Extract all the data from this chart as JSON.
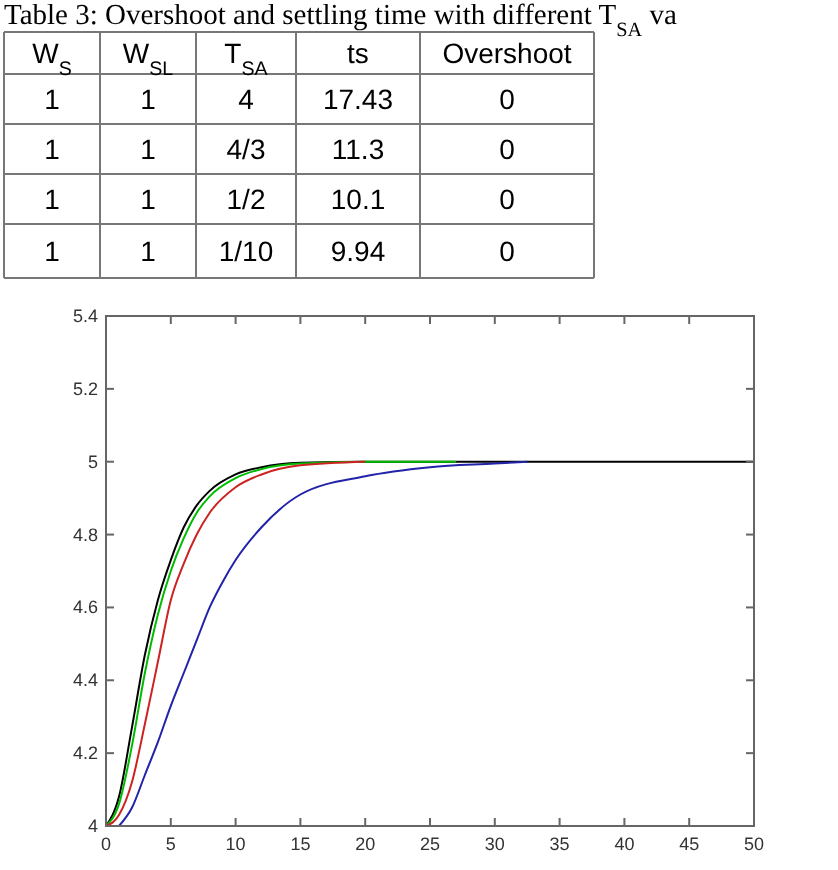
{
  "chart_data": [
    {
      "type": "other",
      "title": "Table 3: Overshoot and settling time with different T$_{SA}$ va",
      "categories": [
        "W$_{S}$",
        "W$_{SL}$",
        "T$_{SA}$",
        "ts",
        "Overshoot"
      ],
      "annotations": [
        "1",
        "1",
        "4",
        "17.43",
        "0",
        "1",
        "1",
        "4/3",
        "11.3",
        "0",
        "1",
        "1",
        "1/2",
        "10.1",
        "0",
        "1",
        "1",
        "1/10",
        "9.94",
        "0"
      ]
    },
    {
      "type": "line",
      "xlim": [
        0,
        50
      ],
      "ylim": [
        4,
        5.4
      ],
      "xticks": [
        0,
        5,
        10,
        15,
        20,
        25,
        30,
        35,
        40,
        45,
        50
      ],
      "yticks": [
        4,
        4.2,
        4.4,
        4.6,
        4.8,
        5,
        5.2,
        5.4
      ],
      "grid": false,
      "series": [
        {
          "color": "#000000",
          "x": [
            0,
            1,
            2,
            3,
            4,
            5,
            6,
            7,
            8,
            10,
            12,
            15,
            20,
            50
          ],
          "values": [
            4,
            4.08,
            4.27,
            4.47,
            4.62,
            4.73,
            4.82,
            4.88,
            4.92,
            4.965,
            4.985,
            4.997,
            5,
            5
          ]
        },
        {
          "color": "#00bb00",
          "x": [
            0,
            1,
            2,
            3,
            4,
            5,
            6,
            7,
            8,
            10,
            12,
            15,
            20,
            27
          ],
          "values": [
            4,
            4.06,
            4.22,
            4.42,
            4.58,
            4.7,
            4.79,
            4.86,
            4.905,
            4.955,
            4.98,
            4.995,
            5,
            5
          ]
        },
        {
          "color": "#cc2222",
          "x": [
            0,
            1,
            2,
            3,
            4,
            5,
            6,
            7,
            8,
            10,
            12,
            15,
            20
          ],
          "values": [
            4,
            4.03,
            4.12,
            4.28,
            4.45,
            4.62,
            4.72,
            4.8,
            4.86,
            4.93,
            4.965,
            4.99,
            5
          ]
        },
        {
          "color": "#2222aa",
          "x": [
            1,
            2,
            3,
            4,
            5,
            6,
            7,
            8,
            9,
            10,
            12,
            15,
            20,
            25,
            30,
            32.5
          ],
          "values": [
            4,
            4.05,
            4.14,
            4.23,
            4.33,
            4.42,
            4.51,
            4.6,
            4.67,
            4.73,
            4.82,
            4.91,
            4.96,
            4.985,
            4.995,
            5
          ]
        }
      ]
    }
  ]
}
